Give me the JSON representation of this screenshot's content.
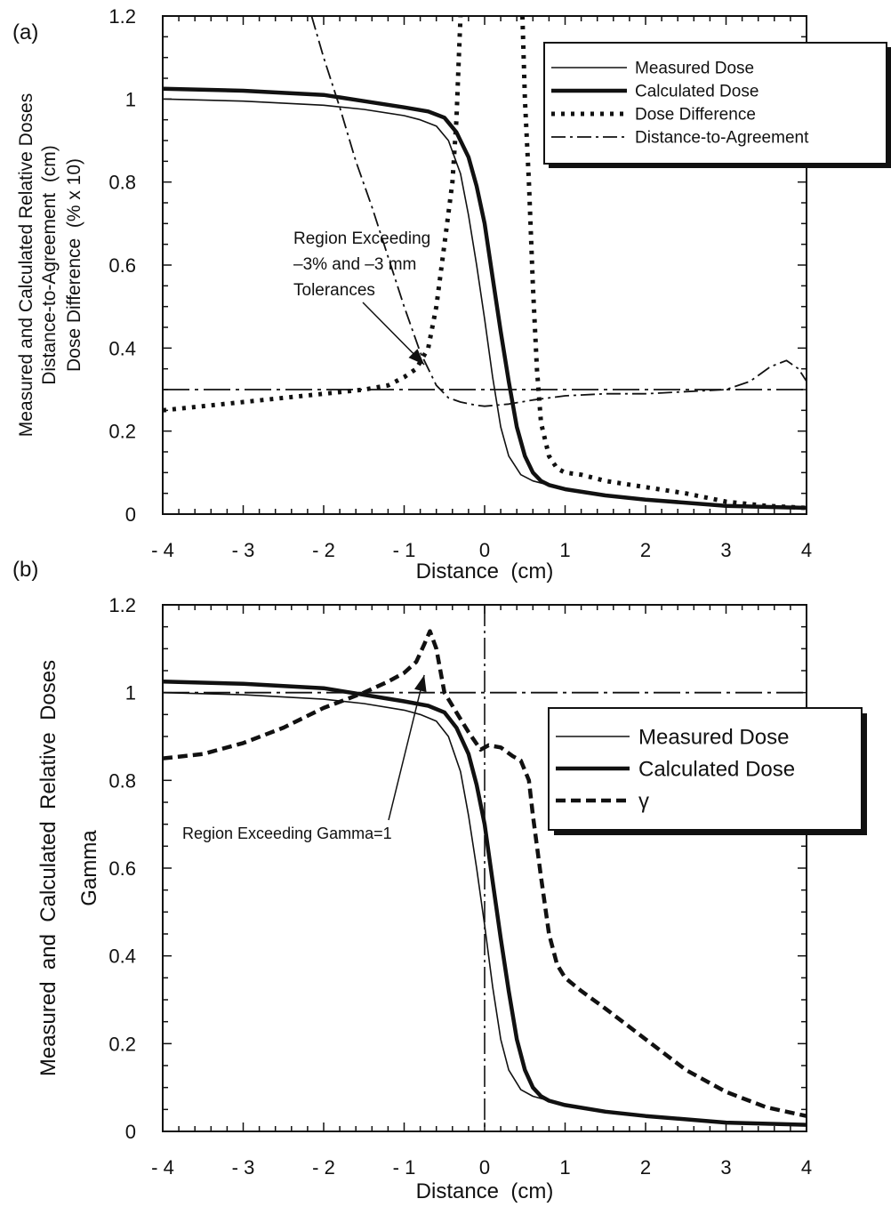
{
  "chart_data": [
    {
      "panel_label": "(a)",
      "type": "line",
      "xlabel": "Distance  (cm)",
      "ylabel_lines": [
        "Measured and Calculated Relative Doses",
        "Distance-to-Agreement  (cm)",
        "Dose Difference  (% x 10)"
      ],
      "xlim": [
        -4,
        4
      ],
      "ylim": [
        0,
        1.2
      ],
      "x_ticks": [
        -4,
        -3,
        -2,
        -1,
        0,
        1,
        2,
        3,
        4
      ],
      "x_tick_labels": [
        "- 4",
        "- 3",
        "- 2",
        "- 1",
        "0",
        "1",
        "2",
        "3",
        "4"
      ],
      "y_ticks": [
        0,
        0.2,
        0.4,
        0.6,
        0.8,
        1,
        1.2
      ],
      "y_tick_labels": [
        "0",
        "0.2",
        "0.4",
        "0.6",
        "0.8",
        "1",
        "1.2"
      ],
      "grid": false,
      "legend_position": "top-right",
      "annotation": {
        "lines": [
          "Region Exceeding",
          "–3% and –3 mm",
          "Tolerances"
        ],
        "arrow_to": [
          -0.75,
          0.36
        ]
      },
      "reference_line": {
        "y": 0.3
      },
      "series": [
        {
          "name": "Measured Dose",
          "style": "thin",
          "x": [
            -4,
            -3,
            -2,
            -1.5,
            -1,
            -0.8,
            -0.6,
            -0.45,
            -0.3,
            -0.2,
            -0.1,
            0,
            0.1,
            0.2,
            0.3,
            0.45,
            0.6,
            0.8,
            1,
            1.5,
            2,
            3,
            4
          ],
          "y": [
            1.0,
            0.995,
            0.985,
            0.975,
            0.96,
            0.95,
            0.935,
            0.9,
            0.82,
            0.72,
            0.6,
            0.47,
            0.33,
            0.21,
            0.14,
            0.095,
            0.08,
            0.07,
            0.06,
            0.045,
            0.035,
            0.02,
            0.015
          ]
        },
        {
          "name": "Calculated Dose",
          "style": "thick",
          "x": [
            -4,
            -3,
            -2,
            -1.5,
            -1,
            -0.7,
            -0.5,
            -0.35,
            -0.2,
            -0.1,
            0,
            0.1,
            0.2,
            0.3,
            0.4,
            0.5,
            0.6,
            0.7,
            0.8,
            1,
            1.5,
            2,
            3,
            4
          ],
          "y": [
            1.025,
            1.02,
            1.01,
            0.995,
            0.98,
            0.97,
            0.955,
            0.92,
            0.86,
            0.79,
            0.7,
            0.57,
            0.44,
            0.32,
            0.21,
            0.14,
            0.1,
            0.08,
            0.07,
            0.06,
            0.045,
            0.035,
            0.02,
            0.015
          ]
        },
        {
          "name": "Dose Difference",
          "style": "dotted",
          "x": [
            -4,
            -3,
            -2,
            -1.5,
            -1.2,
            -1.0,
            -0.85,
            -0.7,
            -0.6,
            -0.5,
            -0.4,
            -0.35,
            -0.32,
            -0.3,
            null,
            0.47,
            0.5,
            0.55,
            0.6,
            0.65,
            0.7,
            0.8,
            0.9,
            1.0,
            1.2,
            1.5,
            2,
            2.5,
            3,
            3.5,
            4
          ],
          "y": [
            0.25,
            0.27,
            0.29,
            0.3,
            0.31,
            0.33,
            0.35,
            0.4,
            0.5,
            0.65,
            0.8,
            0.95,
            1.1,
            1.2,
            null,
            1.2,
            1.0,
            0.8,
            0.55,
            0.35,
            0.22,
            0.14,
            0.11,
            0.1,
            0.095,
            0.08,
            0.065,
            0.05,
            0.03,
            0.02,
            0.015
          ]
        },
        {
          "name": "Distance-to-Agreement",
          "style": "dashdot",
          "x": [
            -2.15,
            -2.0,
            -1.8,
            -1.6,
            -1.4,
            -1.2,
            -1.0,
            -0.8,
            -0.6,
            -0.45,
            -0.3,
            -0.1,
            0,
            0.3,
            0.6,
            1,
            1.5,
            2,
            2.5,
            3,
            3.3,
            3.55,
            3.75,
            3.9,
            4
          ],
          "y": [
            1.2,
            1.1,
            0.98,
            0.85,
            0.74,
            0.62,
            0.5,
            0.39,
            0.31,
            0.28,
            0.27,
            0.262,
            0.26,
            0.265,
            0.275,
            0.285,
            0.29,
            0.29,
            0.295,
            0.3,
            0.32,
            0.355,
            0.37,
            0.35,
            0.32
          ]
        }
      ]
    },
    {
      "panel_label": "(b)",
      "type": "line",
      "xlabel": "Distance  (cm)",
      "ylabel_lines": [
        "Measured  and  Calculated  Relative  Doses",
        "Gamma"
      ],
      "xlim": [
        -4,
        4
      ],
      "ylim": [
        0,
        1.2
      ],
      "x_ticks": [
        -4,
        -3,
        -2,
        -1,
        0,
        1,
        2,
        3,
        4
      ],
      "x_tick_labels": [
        "- 4",
        "- 3",
        "- 2",
        "- 1",
        "0",
        "1",
        "2",
        "3",
        "4"
      ],
      "y_ticks": [
        0,
        0.2,
        0.4,
        0.6,
        0.8,
        1,
        1.2
      ],
      "y_tick_labels": [
        "0",
        "0.2",
        "0.4",
        "0.6",
        "0.8",
        "1",
        "1.2"
      ],
      "grid": false,
      "legend_position": "right",
      "annotation": {
        "lines": [
          "Region Exceeding Gamma=1"
        ],
        "arrow_to": [
          -0.75,
          1.04
        ]
      },
      "reference_line": {
        "y": 1.0
      },
      "vertical_line": {
        "x": 0
      },
      "series": [
        {
          "name": "Measured Dose",
          "style": "thin",
          "x": [
            -4,
            -3,
            -2,
            -1.5,
            -1,
            -0.8,
            -0.6,
            -0.45,
            -0.3,
            -0.2,
            -0.1,
            0,
            0.1,
            0.2,
            0.3,
            0.45,
            0.6,
            0.8,
            1,
            1.5,
            2,
            3,
            4
          ],
          "y": [
            1.0,
            0.995,
            0.985,
            0.975,
            0.96,
            0.95,
            0.935,
            0.9,
            0.82,
            0.72,
            0.6,
            0.47,
            0.33,
            0.21,
            0.14,
            0.095,
            0.08,
            0.07,
            0.06,
            0.045,
            0.035,
            0.02,
            0.015
          ]
        },
        {
          "name": "Calculated Dose",
          "style": "thick",
          "x": [
            -4,
            -3,
            -2,
            -1.5,
            -1,
            -0.7,
            -0.5,
            -0.35,
            -0.2,
            -0.1,
            0,
            0.1,
            0.2,
            0.3,
            0.4,
            0.5,
            0.6,
            0.7,
            0.8,
            1,
            1.5,
            2,
            3,
            4
          ],
          "y": [
            1.025,
            1.02,
            1.01,
            0.995,
            0.98,
            0.97,
            0.955,
            0.92,
            0.86,
            0.79,
            0.7,
            0.57,
            0.44,
            0.32,
            0.21,
            0.14,
            0.1,
            0.08,
            0.07,
            0.06,
            0.045,
            0.035,
            0.02,
            0.015
          ]
        },
        {
          "name": "γ",
          "style": "dashed",
          "x": [
            -4,
            -3.5,
            -3,
            -2.5,
            -2,
            -1.5,
            -1.2,
            -1.0,
            -0.85,
            -0.75,
            -0.68,
            -0.6,
            -0.5,
            -0.35,
            -0.2,
            -0.05,
            0.05,
            0.2,
            0.35,
            0.45,
            0.55,
            0.6,
            0.7,
            0.8,
            0.9,
            1.0,
            1.2,
            1.5,
            2,
            2.5,
            3,
            3.5,
            4
          ],
          "y": [
            0.85,
            0.86,
            0.885,
            0.92,
            0.965,
            1.0,
            1.025,
            1.045,
            1.07,
            1.11,
            1.14,
            1.1,
            1.0,
            0.955,
            0.91,
            0.87,
            0.88,
            0.875,
            0.855,
            0.845,
            0.8,
            0.72,
            0.58,
            0.45,
            0.38,
            0.35,
            0.32,
            0.28,
            0.21,
            0.14,
            0.09,
            0.055,
            0.035
          ]
        }
      ]
    }
  ]
}
